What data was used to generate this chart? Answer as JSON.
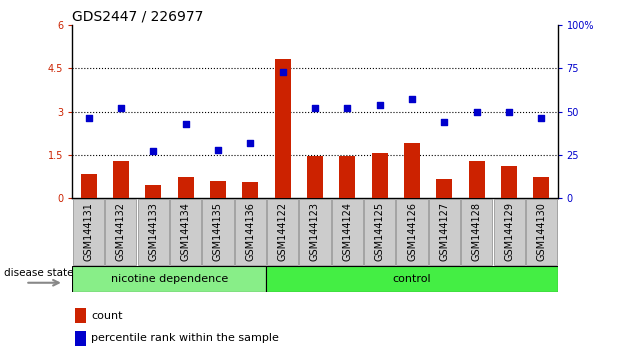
{
  "title": "GDS2447 / 226977",
  "samples": [
    "GSM144131",
    "GSM144132",
    "GSM144133",
    "GSM144134",
    "GSM144135",
    "GSM144136",
    "GSM144122",
    "GSM144123",
    "GSM144124",
    "GSM144125",
    "GSM144126",
    "GSM144127",
    "GSM144128",
    "GSM144129",
    "GSM144130"
  ],
  "counts": [
    0.85,
    1.3,
    0.45,
    0.75,
    0.6,
    0.55,
    4.8,
    1.45,
    1.45,
    1.55,
    1.9,
    0.65,
    1.3,
    1.1,
    0.75
  ],
  "percentiles": [
    46,
    52,
    27,
    43,
    28,
    32,
    73,
    52,
    52,
    54,
    57,
    44,
    50,
    50,
    46
  ],
  "groups": [
    "nicotine dependence",
    "nicotine dependence",
    "nicotine dependence",
    "nicotine dependence",
    "nicotine dependence",
    "nicotine dependence",
    "control",
    "control",
    "control",
    "control",
    "control",
    "control",
    "control",
    "control",
    "control"
  ],
  "group_colors": {
    "nicotine dependence": "#88ee88",
    "control": "#44ee44"
  },
  "bar_color": "#cc2200",
  "dot_color": "#0000cc",
  "ylim_left": [
    0,
    6
  ],
  "ylim_right": [
    0,
    100
  ],
  "yticks_left": [
    0,
    1.5,
    3.0,
    4.5,
    6
  ],
  "ytick_labels_left": [
    "0",
    "1.5",
    "3",
    "4.5",
    "6"
  ],
  "yticks_right": [
    0,
    25,
    50,
    75,
    100
  ],
  "ytick_labels_right": [
    "0",
    "25",
    "50",
    "75",
    "100%"
  ],
  "hlines": [
    1.5,
    3.0,
    4.5
  ],
  "legend_count_label": "count",
  "legend_pct_label": "percentile rank within the sample",
  "disease_state_label": "disease state",
  "background_color": "#ffffff",
  "plot_bg_color": "#ffffff",
  "title_fontsize": 10,
  "tick_fontsize": 7,
  "bar_width": 0.5
}
